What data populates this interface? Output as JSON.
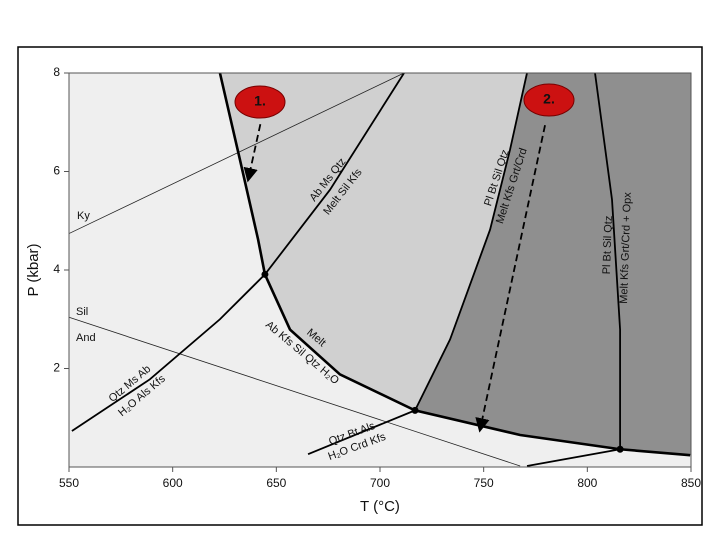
{
  "chart_data": {
    "type": "phase-diagram",
    "x_label": "T (°C)",
    "y_label": "P (kbar)",
    "xlim": [
      550,
      850
    ],
    "ylim": [
      0,
      8
    ],
    "xticks": [
      550,
      600,
      650,
      700,
      750,
      800,
      850
    ],
    "yticks": [
      2,
      4,
      6,
      8
    ],
    "colors": {
      "background": "#efefef",
      "light_field": "#d0d0d0",
      "dark_field": "#8f8f8f",
      "curve": "#000000",
      "thin": "#222222",
      "marker": "#cc1111",
      "marker_text": "#111111"
    },
    "series": [
      {
        "x": [
          550,
          711.6
        ],
        "y": [
          4.74,
          8
        ]
      },
      {
        "x": [
          550,
          767.6
        ],
        "y": [
          3.04,
          0.02
        ]
      },
      {
        "x": [
          622.8,
          632.5,
          641.2,
          644.5,
          656.6,
          680.7,
          716.9,
          767.6,
          815.8,
          849.6
        ],
        "y": [
          8,
          6.23,
          4.62,
          3.91,
          2.79,
          1.88,
          1.15,
          0.65,
          0.36,
          0.24
        ]
      },
      {
        "x": [
          551.4,
          589,
          622.8,
          644.5,
          675.9,
          711.6
        ],
        "y": [
          0.73,
          1.78,
          3.0,
          3.91,
          5.63,
          8
        ]
      },
      {
        "x": [
          716.9,
          733.8,
          753.1,
          762.7,
          770.9
        ],
        "y": [
          1.15,
          2.59,
          4.82,
          6.44,
          8
        ]
      },
      {
        "x": [
          803.7,
          811.9,
          815.8,
          815.8
        ],
        "y": [
          8,
          5.43,
          2.79,
          0.36
        ]
      },
      {
        "x": [
          665.3,
          716.9
        ],
        "y": [
          0.26,
          1.15
        ]
      },
      {
        "x": [
          770.9,
          815.8
        ],
        "y": [
          0.02,
          0.36
        ]
      }
    ],
    "points": [
      {
        "x": 644.5,
        "y": 3.91
      },
      {
        "x": 716.9,
        "y": 1.15
      },
      {
        "x": 815.8,
        "y": 0.36
      }
    ],
    "arrows": [
      {
        "x1": 642.3,
        "y1": 6.96,
        "x2": 636.5,
        "y2": 5.85
      },
      {
        "x1": 779.6,
        "y1": 6.94,
        "x2": 748.3,
        "y2": 0.77
      }
    ],
    "markers": [
      "1.",
      "2."
    ],
    "annotations": [
      "Ky",
      "Sil",
      "And",
      "Ab Ms Qtz",
      "Melt Sil Kfs",
      "Melt",
      "Ab Kfs Sil Qtz H₂O",
      "Qtz Ms Ab",
      "H₂O Als Kfs",
      "Pl Bt Sil Qtz",
      "Melt Kfs Grt/Crd",
      "Pl Bt Sil Qtz",
      "Melt Kfs Grt/Crd + Opx",
      "Qtz Bt Als",
      "H₂O Crd Kfs"
    ]
  }
}
